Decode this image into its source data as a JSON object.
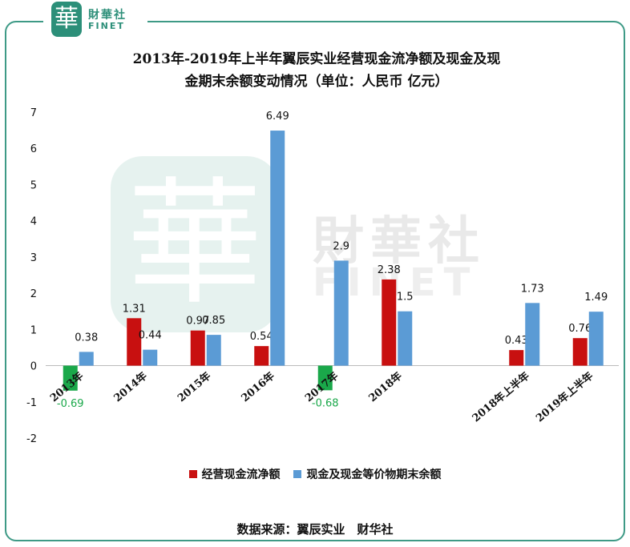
{
  "header": {
    "logo_char": "華",
    "logo_cn": "財華社",
    "logo_en": "FINET"
  },
  "watermark": {
    "char": "華",
    "cn": "財華社",
    "en": "FINET"
  },
  "chart_data": {
    "type": "bar",
    "title_line1": "2013年-2019年上半年翼辰实业经营现金流净额及现金及现",
    "title_line2": "金期末余额变动情况（单位：人民币 亿元）",
    "categories": [
      "2013年",
      "2014年",
      "2015年",
      "2016年",
      "2017年",
      "2018年",
      "",
      "2018年上半年",
      "2019年上半年"
    ],
    "series": [
      {
        "name": "经营现金流净额",
        "values": [
          -0.69,
          1.31,
          0.97,
          0.54,
          -0.68,
          2.38,
          null,
          0.43,
          0.76
        ]
      },
      {
        "name": "现金及现金等价物期末余额",
        "values": [
          0.38,
          0.44,
          0.85,
          6.49,
          2.9,
          1.5,
          null,
          1.73,
          1.49
        ]
      }
    ],
    "value_labels": [
      [
        "-0.69",
        "1.31",
        "0.97",
        "0.54",
        "-0.68",
        "2.38",
        "",
        "0.43",
        "0.76"
      ],
      [
        "0.38",
        "0.44",
        "0.85",
        "6.49",
        "2.9",
        "1.5",
        "",
        "1.73",
        "1.49"
      ]
    ],
    "ylim": [
      -2,
      7
    ],
    "yticks": [
      "-2",
      "-1",
      "0",
      "1",
      "2",
      "3",
      "4",
      "5",
      "6",
      "7"
    ],
    "colors": {
      "positive_bar": "#c81010",
      "negative_bar": "#1aa84a",
      "cash_bar": "#5b9bd5",
      "negative_label": "#1aa84a",
      "frame": "#3e9a86"
    },
    "legend_position": "bottom"
  },
  "footer": {
    "source": "数据来源：翼辰实业　财华社"
  }
}
